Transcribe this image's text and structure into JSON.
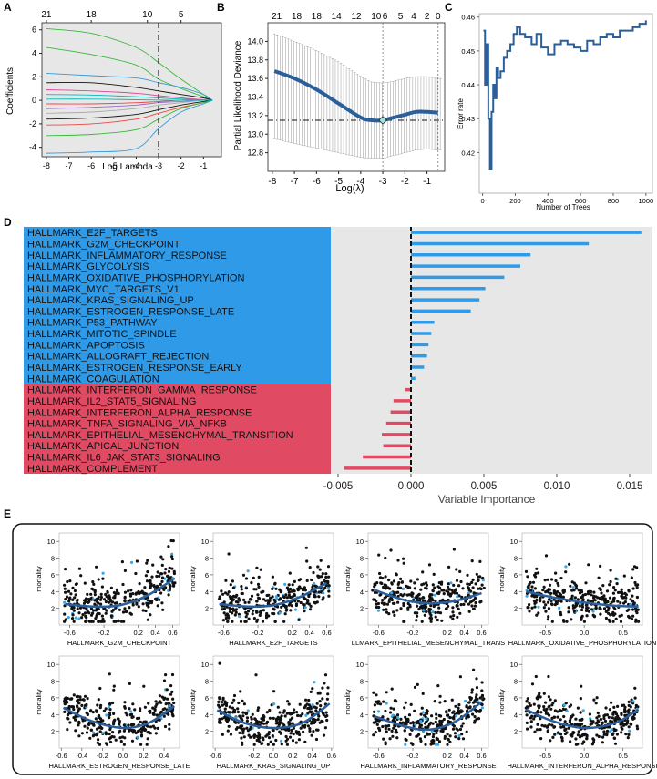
{
  "panel_letters": {
    "a": "A",
    "b": "B",
    "c": "C",
    "d": "D",
    "e": "E"
  },
  "colors": {
    "blue": "#2f9be8",
    "red": "#e04a63",
    "trend": "#2a5f9c",
    "panel_bg": "#e7e7e7",
    "dot_blue": "#3aa8e8"
  },
  "chart_data": [
    {
      "id": "A",
      "type": "line",
      "title": "",
      "xlabel": "Log Lambda",
      "ylabel": "Coefficients",
      "xlim": [
        -8.2,
        -0.2
      ],
      "ylim": [
        -4.8,
        6.6
      ],
      "xticks": [
        "-8",
        "-7",
        "-6",
        "-5",
        "-4",
        "-3",
        "-2",
        "-1"
      ],
      "xtick_values": [
        -8,
        -7,
        -6,
        -5,
        -4,
        -3,
        -2,
        -1
      ],
      "yticks": [
        "-4",
        "-2",
        "0",
        "2",
        "4",
        "6"
      ],
      "ytick_values": [
        -4,
        -2,
        0,
        2,
        4,
        6
      ],
      "top_ticks": [
        "21",
        "18",
        "10",
        "5"
      ],
      "top_tick_values": [
        -8,
        -6,
        -3.5,
        -2
      ],
      "vline": -3,
      "series": [
        {
          "name": "c1",
          "color": "#3ab83a",
          "x": [
            -8,
            -6,
            -4,
            -3,
            -2,
            -1,
            -0.6
          ],
          "values": [
            6.1,
            5.7,
            4.5,
            3.2,
            1.8,
            0.5,
            0
          ]
        },
        {
          "name": "c2",
          "color": "#3ab83a",
          "x": [
            -8,
            -6,
            -4,
            -3,
            -2,
            -1,
            -0.6
          ],
          "values": [
            4.5,
            3.9,
            3.0,
            1.8,
            1.0,
            0.3,
            0
          ]
        },
        {
          "name": "c3",
          "color": "#3399dd",
          "x": [
            -8,
            -6,
            -4,
            -3,
            -2,
            -1,
            -0.6
          ],
          "values": [
            2.3,
            2.1,
            1.9,
            1.5,
            1.1,
            0.5,
            0
          ]
        },
        {
          "name": "c4",
          "color": "#111111",
          "x": [
            -8,
            -6,
            -4,
            -3,
            -2,
            -1,
            -0.6
          ],
          "values": [
            1.5,
            1.5,
            1.1,
            0.8,
            0.5,
            0.2,
            0
          ]
        },
        {
          "name": "c5",
          "color": "#dd4499",
          "x": [
            -8,
            -6,
            -4,
            -3,
            -2,
            -1,
            -0.6
          ],
          "values": [
            0.9,
            0.8,
            0.6,
            0.4,
            0.2,
            0.05,
            0
          ]
        },
        {
          "name": "c6",
          "color": "#00bbbb",
          "x": [
            -8,
            -6,
            -4,
            -3,
            -2,
            -1,
            -0.6
          ],
          "values": [
            0.5,
            0.45,
            0.3,
            0.2,
            0.1,
            0.02,
            0
          ]
        },
        {
          "name": "c7",
          "color": "#ee4444",
          "x": [
            -8,
            -6,
            -4,
            -3,
            -2,
            -1,
            -0.6
          ],
          "values": [
            -0.3,
            -0.3,
            -0.2,
            -0.1,
            0,
            0,
            0
          ]
        },
        {
          "name": "c8",
          "color": "#9966cc",
          "x": [
            -8,
            -6,
            -4,
            -3,
            -2,
            -1,
            -0.6
          ],
          "values": [
            -0.7,
            -0.6,
            -0.4,
            -0.2,
            -0.1,
            0,
            0
          ]
        },
        {
          "name": "c9",
          "color": "#aaaaaa",
          "x": [
            -8,
            -6,
            -4,
            -3,
            -2,
            -1,
            -0.6
          ],
          "values": [
            -1.1,
            -1.0,
            -0.7,
            -0.4,
            -0.2,
            0,
            0
          ]
        },
        {
          "name": "c10",
          "color": "#111111",
          "x": [
            -8,
            -6,
            -4,
            -3,
            -2,
            -1,
            -0.6
          ],
          "values": [
            -1.6,
            -1.5,
            -1.2,
            -0.8,
            -0.4,
            -0.1,
            0
          ]
        },
        {
          "name": "c11",
          "color": "#ee4444",
          "x": [
            -8,
            -6,
            -4,
            -3,
            -2,
            -1,
            -0.6
          ],
          "values": [
            -2.1,
            -2.0,
            -1.6,
            -1.1,
            -0.6,
            -0.2,
            0
          ]
        },
        {
          "name": "c12",
          "color": "#3ab83a",
          "x": [
            -8,
            -6,
            -4,
            -3,
            -2,
            -1,
            -0.6
          ],
          "values": [
            -3.0,
            -2.9,
            -2.5,
            -1.6,
            -0.7,
            -0.2,
            0
          ]
        },
        {
          "name": "c13",
          "color": "#3399dd",
          "x": [
            -8,
            -6,
            -4,
            -3,
            -2,
            -1,
            -0.6
          ],
          "values": [
            -4.5,
            -4.4,
            -4.1,
            -2.4,
            -1.0,
            -0.3,
            0
          ]
        },
        {
          "name": "c14",
          "color": "#00bbbb",
          "x": [
            -8,
            -6,
            -4,
            -3,
            -2,
            -1,
            -0.6
          ],
          "values": [
            0.1,
            0.1,
            0.05,
            0.02,
            0,
            0,
            0
          ]
        }
      ]
    },
    {
      "id": "B",
      "type": "line",
      "title": "",
      "xlabel": "Log(λ)",
      "ylabel": "Partial Likelihood Deviance",
      "xlim": [
        -8.2,
        -0.2
      ],
      "ylim": [
        12.6,
        14.2
      ],
      "xticks": [
        "-8",
        "-7",
        "-6",
        "-5",
        "-4",
        "-3",
        "-2",
        "-1"
      ],
      "xtick_values": [
        -8,
        -7,
        -6,
        -5,
        -4,
        -3,
        -2,
        -1
      ],
      "yticks": [
        "12.8",
        "13.0",
        "13.2",
        "13.4",
        "13.6",
        "13.8",
        "14.0"
      ],
      "ytick_values": [
        12.8,
        13.0,
        13.2,
        13.4,
        13.6,
        13.8,
        14.0
      ],
      "top_ticks": [
        "21",
        "18",
        "18",
        "14",
        "12",
        "10",
        "6",
        "5",
        "4",
        "2",
        "0"
      ],
      "top_tick_values": [
        -7.8,
        -6.9,
        -6.0,
        -5.1,
        -4.2,
        -3.3,
        -2.9,
        -2.2,
        -1.6,
        -1.0,
        -0.5
      ],
      "vlines": [
        -3,
        -0.5
      ],
      "hline": 13.15,
      "min_point": [
        -3,
        13.15
      ],
      "x": [
        -7.9,
        -7,
        -6,
        -5,
        -4,
        -3.5,
        -3,
        -2.5,
        -2,
        -1.5,
        -1,
        -0.5
      ],
      "values": [
        13.68,
        13.6,
        13.48,
        13.33,
        13.18,
        13.15,
        13.15,
        13.18,
        13.21,
        13.24,
        13.24,
        13.23
      ],
      "upper": [
        14.08,
        14.0,
        13.9,
        13.78,
        13.62,
        13.56,
        13.55,
        13.57,
        13.6,
        13.62,
        13.62,
        13.6
      ],
      "lower": [
        12.95,
        12.9,
        12.85,
        12.8,
        12.75,
        12.74,
        12.74,
        12.77,
        12.8,
        12.83,
        12.84,
        12.83
      ]
    },
    {
      "id": "C",
      "type": "line",
      "title": "",
      "xlabel": "Number of Trees",
      "ylabel": "Error rate",
      "xlim": [
        -20,
        1040
      ],
      "ylim": [
        0.408,
        0.461
      ],
      "xticks": [
        "0",
        "200",
        "400",
        "600",
        "800",
        "1000"
      ],
      "xtick_values": [
        0,
        200,
        400,
        600,
        800,
        1000
      ],
      "yticks": [
        "0.42",
        "0.43",
        "0.44",
        "0.45",
        "0.46"
      ],
      "ytick_values": [
        0.42,
        0.43,
        0.44,
        0.45,
        0.46
      ],
      "x": [
        5,
        15,
        25,
        35,
        45,
        55,
        65,
        75,
        85,
        95,
        110,
        130,
        150,
        170,
        190,
        210,
        230,
        260,
        300,
        330,
        360,
        400,
        440,
        480,
        520,
        560,
        600,
        640,
        680,
        720,
        760,
        800,
        840,
        880,
        920,
        960,
        1000
      ],
      "values": [
        0.456,
        0.44,
        0.452,
        0.43,
        0.415,
        0.432,
        0.44,
        0.436,
        0.445,
        0.442,
        0.444,
        0.448,
        0.45,
        0.452,
        0.455,
        0.457,
        0.455,
        0.454,
        0.452,
        0.455,
        0.451,
        0.449,
        0.452,
        0.453,
        0.452,
        0.451,
        0.45,
        0.453,
        0.452,
        0.454,
        0.455,
        0.454,
        0.456,
        0.456,
        0.457,
        0.458,
        0.459
      ]
    },
    {
      "id": "D",
      "type": "bar",
      "title": "",
      "xlabel": "Variable Importance",
      "ylabel": "",
      "xlim": [
        -0.0055,
        0.0165
      ],
      "xticks": [
        "-0.005",
        "0.000",
        "0.005",
        "0.010",
        "0.015"
      ],
      "xtick_values": [
        -0.005,
        0.0,
        0.005,
        0.01,
        0.015
      ],
      "categories": [
        "HALLMARK_E2F_TARGETS",
        "HALLMARK_G2M_CHECKPOINT",
        "HALLMARK_INFLAMMATORY_RESPONSE",
        "HALLMARK_GLYCOLYSIS",
        "HALLMARK_OXIDATIVE_PHOSPHORYLATION",
        "HALLMARK_MYC_TARGETS_V1",
        "HALLMARK_KRAS_SIGNALING_UP",
        "HALLMARK_ESTROGEN_RESPONSE_LATE",
        "HALLMARK_P53_PATHWAY",
        "HALLMARK_MITOTIC_SPINDLE",
        "HALLMARK_APOPTOSIS",
        "HALLMARK_ALLOGRAFT_REJECTION",
        "HALLMARK_ESTROGEN_RESPONSE_EARLY",
        "HALLMARK_COAGULATION",
        "HALLMARK_INTERFERON_GAMMA_RESPONSE",
        "HALLMARK_IL2_STAT5_SIGNALING",
        "HALLMARK_INTERFERON_ALPHA_RESPONSE",
        "HALLMARK_TNFA_SIGNALING_VIA_NFKB",
        "HALLMARK_EPITHELIAL_MESENCHYMAL_TRANSITION",
        "HALLMARK_APICAL_JUNCTION",
        "HALLMARK_IL6_JAK_STAT3_SIGNALING",
        "HALLMARK_COMPLEMENT"
      ],
      "values": [
        0.0158,
        0.0122,
        0.0082,
        0.0075,
        0.0064,
        0.0051,
        0.0047,
        0.0041,
        0.0016,
        0.0014,
        0.0012,
        0.0011,
        0.0009,
        0.0003,
        -0.0004,
        -0.0012,
        -0.0014,
        -0.0017,
        -0.002,
        -0.0019,
        -0.0033,
        -0.0046
      ]
    },
    {
      "id": "E",
      "type": "scatter",
      "ylabel": "mortality",
      "yticks": [
        "2",
        "4",
        "6",
        "8",
        "10"
      ],
      "ytick_values": [
        2,
        4,
        6,
        8,
        10
      ],
      "ylim": [
        0,
        11
      ],
      "subplots": [
        {
          "xlabel": "HALLMARK_G2M_CHECKPOINT",
          "xlim": [
            -0.72,
            0.68
          ],
          "xticks": [
            "-0.6",
            "-0.2",
            "0.2",
            "0.4",
            "0.6"
          ],
          "xtick_values": [
            -0.6,
            -0.2,
            0.2,
            0.4,
            0.6
          ],
          "trend_x": [
            -0.65,
            -0.3,
            0.0,
            0.3,
            0.6
          ],
          "trend_y": [
            2.5,
            2.2,
            2.4,
            3.5,
            5.4
          ],
          "pattern": "rise"
        },
        {
          "xlabel": "HALLMARK_E2F_TARGETS",
          "xlim": [
            -0.72,
            0.68
          ],
          "xticks": [
            "-0.6",
            "-0.2",
            "0.2",
            "0.4",
            "0.6"
          ],
          "xtick_values": [
            -0.6,
            -0.2,
            0.2,
            0.4,
            0.6
          ],
          "trend_x": [
            -0.65,
            -0.3,
            0.0,
            0.3,
            0.6
          ],
          "trend_y": [
            2.5,
            2.2,
            2.4,
            3.4,
            5.0
          ],
          "pattern": "rise"
        },
        {
          "xlabel": "LLMARK_EPITHELIAL_MESENCHYMAL_TRANS",
          "xlim": [
            -0.72,
            0.68
          ],
          "xticks": [
            "-0.6",
            "-0.2",
            "0.2",
            "0.4",
            "0.6"
          ],
          "xtick_values": [
            -0.6,
            -0.2,
            0.2,
            0.4,
            0.6
          ],
          "trend_x": [
            -0.65,
            -0.3,
            0.0,
            0.3,
            0.6
          ],
          "trend_y": [
            4.2,
            3.0,
            2.6,
            2.9,
            3.8
          ],
          "pattern": "u"
        },
        {
          "xlabel": "HALLMARK_OXIDATIVE_PHOSPHORYLATION",
          "xlim": [
            -0.8,
            0.75
          ],
          "xticks": [
            "-0.5",
            "0.0",
            "0.5"
          ],
          "xtick_values": [
            -0.5,
            0.0,
            0.5
          ],
          "trend_x": [
            -0.75,
            -0.4,
            0.0,
            0.4,
            0.7
          ],
          "trend_y": [
            4.0,
            3.3,
            2.7,
            2.3,
            2.2
          ],
          "pattern": "fall"
        },
        {
          "xlabel": "HALLMARK_ESTROGEN_RESPONSE_LATE",
          "xlim": [
            -0.62,
            0.55
          ],
          "xticks": [
            "-0.6",
            "-0.4",
            "-0.2",
            "0.0",
            "0.2",
            "0.4"
          ],
          "xtick_values": [
            -0.6,
            -0.4,
            -0.2,
            0.0,
            0.2,
            0.4
          ],
          "trend_x": [
            -0.58,
            -0.3,
            0.0,
            0.25,
            0.5
          ],
          "trend_y": [
            4.8,
            3.2,
            2.4,
            3.0,
            5.0
          ],
          "pattern": "u"
        },
        {
          "xlabel": "HALLMARK_KRAS_SIGNALING_UP",
          "xlim": [
            -0.62,
            0.62
          ],
          "xticks": [
            "-0.6",
            "-0.2",
            "0.0",
            "0.2",
            "0.4",
            "0.6"
          ],
          "xtick_values": [
            -0.6,
            -0.2,
            0.0,
            0.2,
            0.4,
            0.6
          ],
          "trend_x": [
            -0.58,
            -0.3,
            0.0,
            0.3,
            0.58
          ],
          "trend_y": [
            4.5,
            3.0,
            2.4,
            3.0,
            5.3
          ],
          "pattern": "u"
        },
        {
          "xlabel": "HALLMARK_INFLAMMATORY_RESPONSE",
          "xlim": [
            -0.72,
            0.68
          ],
          "xticks": [
            "-0.6",
            "-0.2",
            "0.2",
            "0.4",
            "0.6"
          ],
          "xtick_values": [
            -0.6,
            -0.2,
            0.2,
            0.4,
            0.6
          ],
          "trend_x": [
            -0.65,
            -0.3,
            0.0,
            0.3,
            0.6
          ],
          "trend_y": [
            3.8,
            2.6,
            2.2,
            3.2,
            5.5
          ],
          "pattern": "u"
        },
        {
          "xlabel": "HALLMARK_INTERFERON_ALPHA_RESPONSI",
          "xlim": [
            -0.8,
            0.75
          ],
          "xticks": [
            "-0.5",
            "0.0",
            "0.5"
          ],
          "xtick_values": [
            -0.5,
            0.0,
            0.5
          ],
          "trend_x": [
            -0.75,
            -0.4,
            0.0,
            0.4,
            0.7
          ],
          "trend_y": [
            4.6,
            3.2,
            2.4,
            3.0,
            4.6
          ],
          "pattern": "u"
        }
      ]
    }
  ]
}
